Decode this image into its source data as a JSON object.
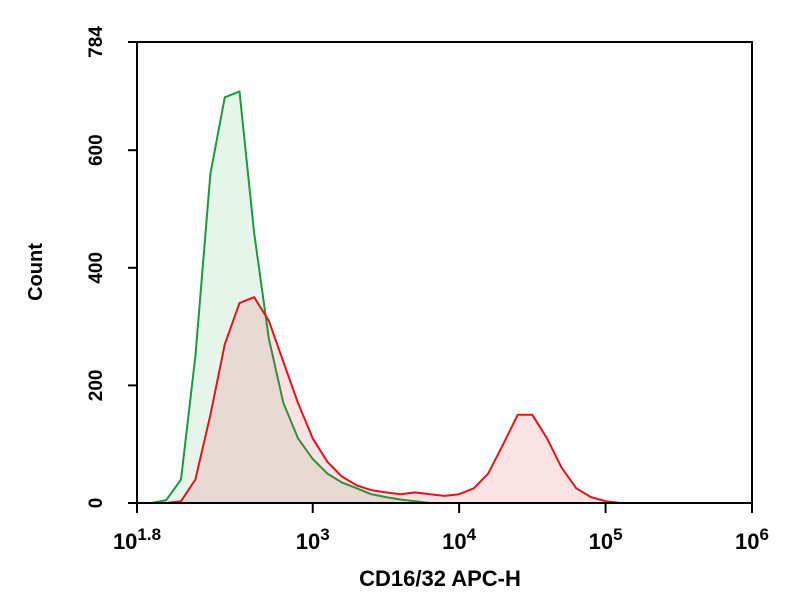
{
  "chart_data": {
    "type": "histogram-overlay",
    "x_label": "CD16/32 APC-H",
    "y_label": "Count",
    "log_x": true,
    "xlim": [
      63.0957,
      1000000
    ],
    "ylim": [
      0,
      784
    ],
    "xticks": [
      {
        "value": 63.0957,
        "label": "10",
        "exponent": "1.8"
      },
      {
        "value": 1000,
        "label": "10",
        "exponent": "3"
      },
      {
        "value": 10000,
        "label": "10",
        "exponent": "4"
      },
      {
        "value": 100000,
        "label": "10",
        "exponent": "5"
      },
      {
        "value": 1000000,
        "label": "10",
        "exponent": "6"
      }
    ],
    "yticks": [
      0,
      200,
      400,
      600,
      784
    ],
    "x": [
      63.1,
      79.4,
      100,
      126,
      158,
      200,
      251,
      316,
      398,
      501,
      631,
      794,
      1000,
      1260,
      1580,
      2000,
      2510,
      3160,
      3980,
      5010,
      6310,
      7940,
      10000,
      12600,
      15800,
      20000,
      25100,
      31600,
      39800,
      50100,
      63100,
      79400,
      100000,
      126000,
      158000,
      200000,
      251000
    ],
    "series": [
      {
        "color": "#1a9a3c",
        "fill": "rgba(60,180,90,0.13)",
        "values": [
          0,
          0,
          5,
          40,
          250,
          560,
          690,
          700,
          460,
          280,
          170,
          110,
          75,
          50,
          35,
          25,
          15,
          10,
          6,
          3,
          0,
          0,
          0,
          0,
          0,
          0,
          0,
          0,
          0,
          0,
          0,
          0,
          0,
          0,
          0,
          0,
          0
        ]
      },
      {
        "color": "#e0141e",
        "fill": "rgba(230,60,70,0.15)",
        "values": [
          0,
          0,
          0,
          3,
          40,
          150,
          270,
          340,
          350,
          310,
          240,
          170,
          110,
          70,
          45,
          30,
          22,
          18,
          15,
          18,
          15,
          12,
          15,
          25,
          50,
          100,
          150,
          150,
          110,
          60,
          25,
          10,
          3,
          0,
          0,
          0,
          0
        ]
      }
    ]
  }
}
